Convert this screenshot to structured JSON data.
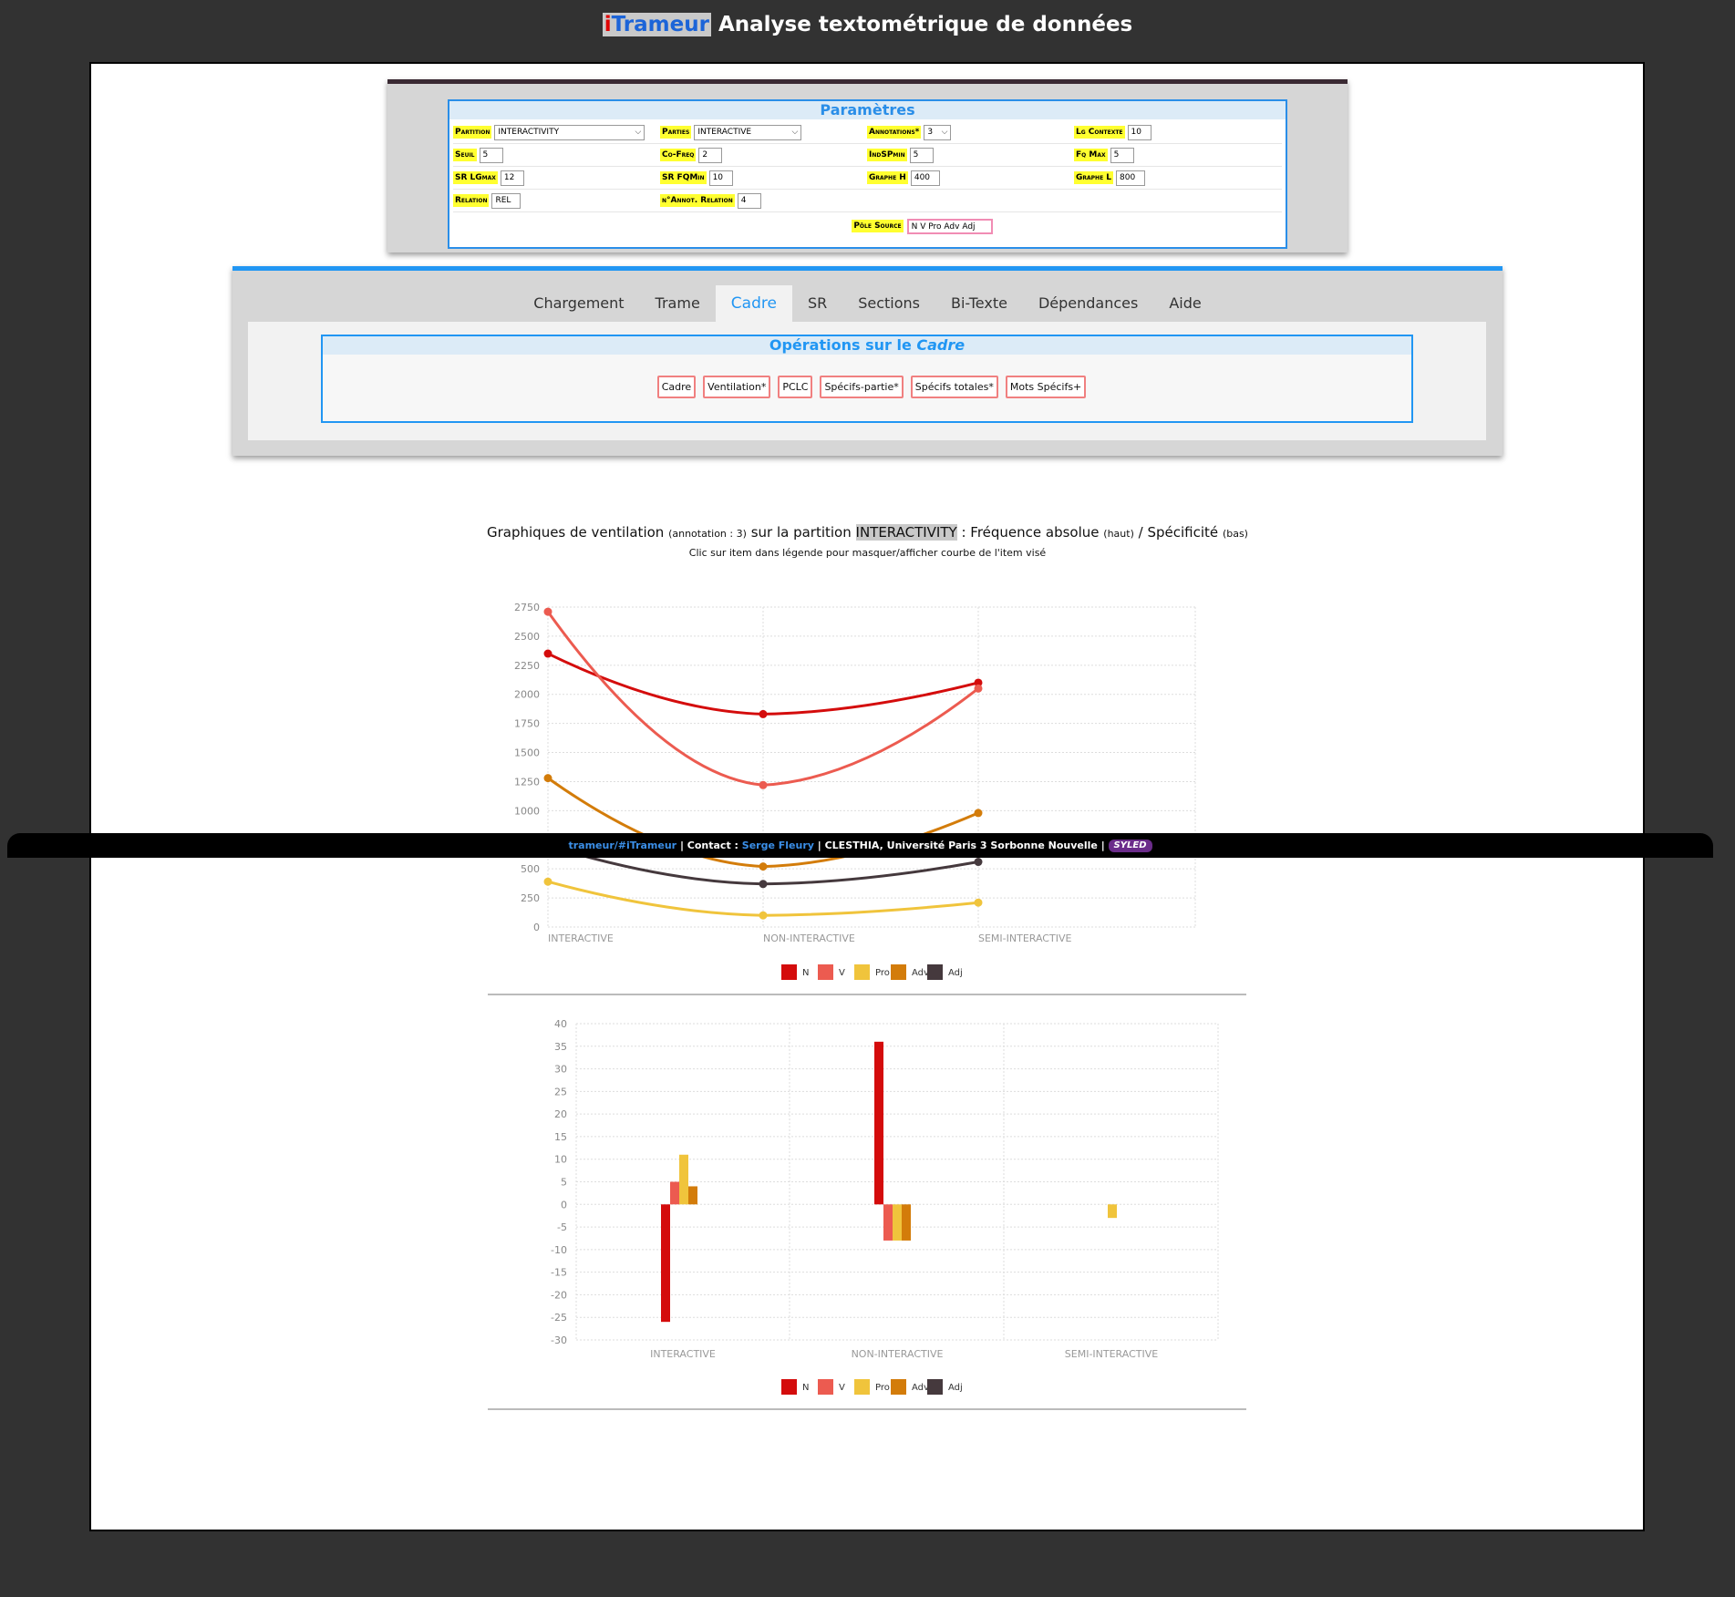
{
  "header": {
    "brand_i": "i",
    "brand_rest": "Trameur",
    "subtitle": "Analyse textométrique de données"
  },
  "params": {
    "title": "Paramètres",
    "rows": [
      [
        {
          "label": "Partition",
          "value": "INTERACTIVITY",
          "type": "select"
        },
        {
          "label": "Parties",
          "value": "INTERACTIVE",
          "type": "select"
        },
        {
          "label": "Annotations*",
          "value": "3",
          "type": "select"
        },
        {
          "label": "Lg Contexte",
          "value": "10",
          "type": "input"
        }
      ],
      [
        {
          "label": "Seuil",
          "value": "5",
          "type": "input"
        },
        {
          "label": "Co-Freq",
          "value": "2",
          "type": "input"
        },
        {
          "label": "IndSPmin",
          "value": "5",
          "type": "input"
        },
        {
          "label": "Fq Max",
          "value": "5",
          "type": "input"
        }
      ],
      [
        {
          "label": "SR LGmax",
          "value": "12",
          "type": "input"
        },
        {
          "label": "SR FQMin",
          "value": "10",
          "type": "input"
        },
        {
          "label": "Graphe H",
          "value": "400",
          "type": "input"
        },
        {
          "label": "Graphe L",
          "value": "800",
          "type": "input"
        }
      ],
      [
        {
          "label": "Relation",
          "value": "REL",
          "type": "input"
        },
        {
          "label": "n°Annot. Relation",
          "value": "4",
          "type": "input"
        }
      ]
    ],
    "pole_label": "Pôle Source",
    "pole_value": "N V Pro Adv Adj"
  },
  "tabs": {
    "items": [
      "Chargement",
      "Trame",
      "Cadre",
      "SR",
      "Sections",
      "Bi-Texte",
      "Dépendances",
      "Aide"
    ],
    "active": "Cadre"
  },
  "ops": {
    "title_prefix": "Opérations sur le",
    "title_em": "Cadre",
    "buttons": [
      "Cadre",
      "Ventilation*",
      "PCLC",
      "Spécifs-partie*",
      "Spécifs totales*",
      "Mots Spécifs+"
    ]
  },
  "charts_header": {
    "t1": "Graphiques de ventilation",
    "t2": "(annotation : 3)",
    "t3": "sur la partition",
    "t4": "INTERACTIVITY",
    "t5": ": Fréquence absolue",
    "t6": "(haut)",
    "t7": "/ Spécificité",
    "t8": "(bas)",
    "subtitle": "Clic sur item dans légende pour masquer/afficher courbe de l'item visé"
  },
  "colors": {
    "N": "#d40c0c",
    "V": "#ec5b50",
    "Pro": "#f0c43c",
    "Adv": "#d37c0a",
    "Adj": "#45393d"
  },
  "chart_data": [
    {
      "type": "line",
      "title": "Fréquence absolue",
      "categories": [
        "INTERACTIVE",
        "NON-INTERACTIVE",
        "SEMI-INTERACTIVE"
      ],
      "yticks": [
        0,
        250,
        500,
        750,
        1000,
        1250,
        1500,
        1750,
        2000,
        2250,
        2500,
        2750
      ],
      "ylim": [
        0,
        2750
      ],
      "series": [
        {
          "name": "N",
          "values": [
            2350,
            1830,
            2100
          ]
        },
        {
          "name": "V",
          "values": [
            2710,
            1220,
            2050
          ]
        },
        {
          "name": "Pro",
          "values": [
            390,
            100,
            210
          ]
        },
        {
          "name": "Adv",
          "values": [
            1280,
            520,
            980
          ]
        },
        {
          "name": "Adj",
          "values": [
            700,
            370,
            560
          ]
        }
      ],
      "legend": [
        "N",
        "V",
        "Pro",
        "Adv",
        "Adj"
      ]
    },
    {
      "type": "bar",
      "title": "Spécificité",
      "categories": [
        "INTERACTIVE",
        "NON-INTERACTIVE",
        "SEMI-INTERACTIVE"
      ],
      "yticks": [
        40,
        35,
        30,
        25,
        20,
        15,
        10,
        5,
        0,
        -5,
        -10,
        -15,
        -20,
        -25,
        -30
      ],
      "ylim": [
        -30,
        40
      ],
      "series": [
        {
          "name": "N",
          "values": [
            -26,
            36,
            0
          ]
        },
        {
          "name": "V",
          "values": [
            5,
            -8,
            0
          ]
        },
        {
          "name": "Pro",
          "values": [
            11,
            -8,
            -3
          ]
        },
        {
          "name": "Adv",
          "values": [
            4,
            -8,
            0
          ]
        },
        {
          "name": "Adj",
          "values": [
            0,
            0,
            0
          ]
        }
      ],
      "legend": [
        "N",
        "V",
        "Pro",
        "Adv",
        "Adj"
      ]
    }
  ],
  "footer": {
    "link1": "trameur/#iTrameur",
    "sep1": " | Contact : ",
    "link2": "Serge Fleury",
    "sep2": " | CLESTHIA, Université Paris 3 Sorbonne Nouvelle | ",
    "logo": "SYLED"
  }
}
